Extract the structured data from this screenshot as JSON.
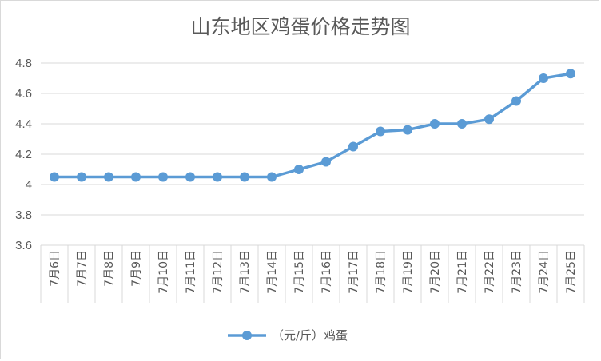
{
  "chart_data": {
    "type": "line",
    "title": "山东地区鸡蛋价格走势图",
    "categories": [
      "7月6日",
      "7月7日",
      "7月8日",
      "7月9日",
      "7月10日",
      "7月11日",
      "7月12日",
      "7月13日",
      "7月14日",
      "7月15日",
      "7月16日",
      "7月17日",
      "7月18日",
      "7月19日",
      "7月20日",
      "7月21日",
      "7月22日",
      "7月23日",
      "7月24日",
      "7月25日"
    ],
    "series": [
      {
        "name": "（元/斤）鸡蛋",
        "values": [
          4.05,
          4.05,
          4.05,
          4.05,
          4.05,
          4.05,
          4.05,
          4.05,
          4.05,
          4.1,
          4.15,
          4.25,
          4.35,
          4.36,
          4.4,
          4.4,
          4.43,
          4.55,
          4.7,
          4.73
        ]
      }
    ],
    "ylim": [
      3.6,
      4.8
    ],
    "yticks": [
      3.6,
      3.8,
      4,
      4.2,
      4.4,
      4.6,
      4.8
    ],
    "ytick_labels": [
      "3.6",
      "3.8",
      "4",
      "4.2",
      "4.4",
      "4.6",
      "4.8"
    ],
    "grid": true,
    "legend_position": "bottom",
    "line_color": "#5b9bd5",
    "grid_color": "#d9d9d9",
    "text_color": "#595959"
  }
}
